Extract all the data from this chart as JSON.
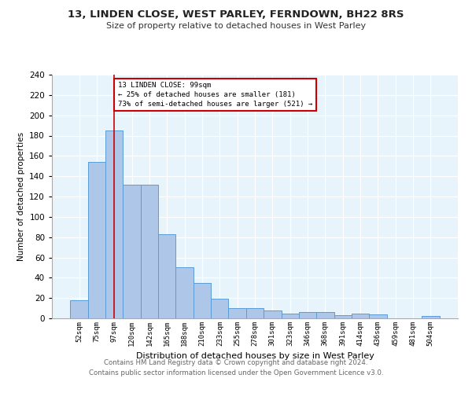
{
  "title1": "13, LINDEN CLOSE, WEST PARLEY, FERNDOWN, BH22 8RS",
  "title2": "Size of property relative to detached houses in West Parley",
  "xlabel": "Distribution of detached houses by size in West Parley",
  "ylabel": "Number of detached properties",
  "categories": [
    "52sqm",
    "75sqm",
    "97sqm",
    "120sqm",
    "142sqm",
    "165sqm",
    "188sqm",
    "210sqm",
    "233sqm",
    "255sqm",
    "278sqm",
    "301sqm",
    "323sqm",
    "346sqm",
    "368sqm",
    "391sqm",
    "414sqm",
    "436sqm",
    "459sqm",
    "481sqm",
    "504sqm"
  ],
  "values": [
    18,
    154,
    185,
    132,
    132,
    83,
    50,
    35,
    19,
    10,
    10,
    8,
    5,
    6,
    6,
    3,
    5,
    4,
    0,
    0,
    2
  ],
  "bar_color": "#aec6e8",
  "bar_edge_color": "#5b9bd5",
  "property_line_x": 2,
  "property_line_color": "#cc0000",
  "annotation_box_color": "#cc0000",
  "annotation_line1": "13 LINDEN CLOSE: 99sqm",
  "annotation_line2": "← 25% of detached houses are smaller (181)",
  "annotation_line3": "73% of semi-detached houses are larger (521) →",
  "ylim": [
    0,
    240
  ],
  "yticks": [
    0,
    20,
    40,
    60,
    80,
    100,
    120,
    140,
    160,
    180,
    200,
    220,
    240
  ],
  "footer_line1": "Contains HM Land Registry data © Crown copyright and database right 2024.",
  "footer_line2": "Contains public sector information licensed under the Open Government Licence v3.0.",
  "bg_color": "#e8f4fb",
  "fig_bg_color": "#ffffff"
}
